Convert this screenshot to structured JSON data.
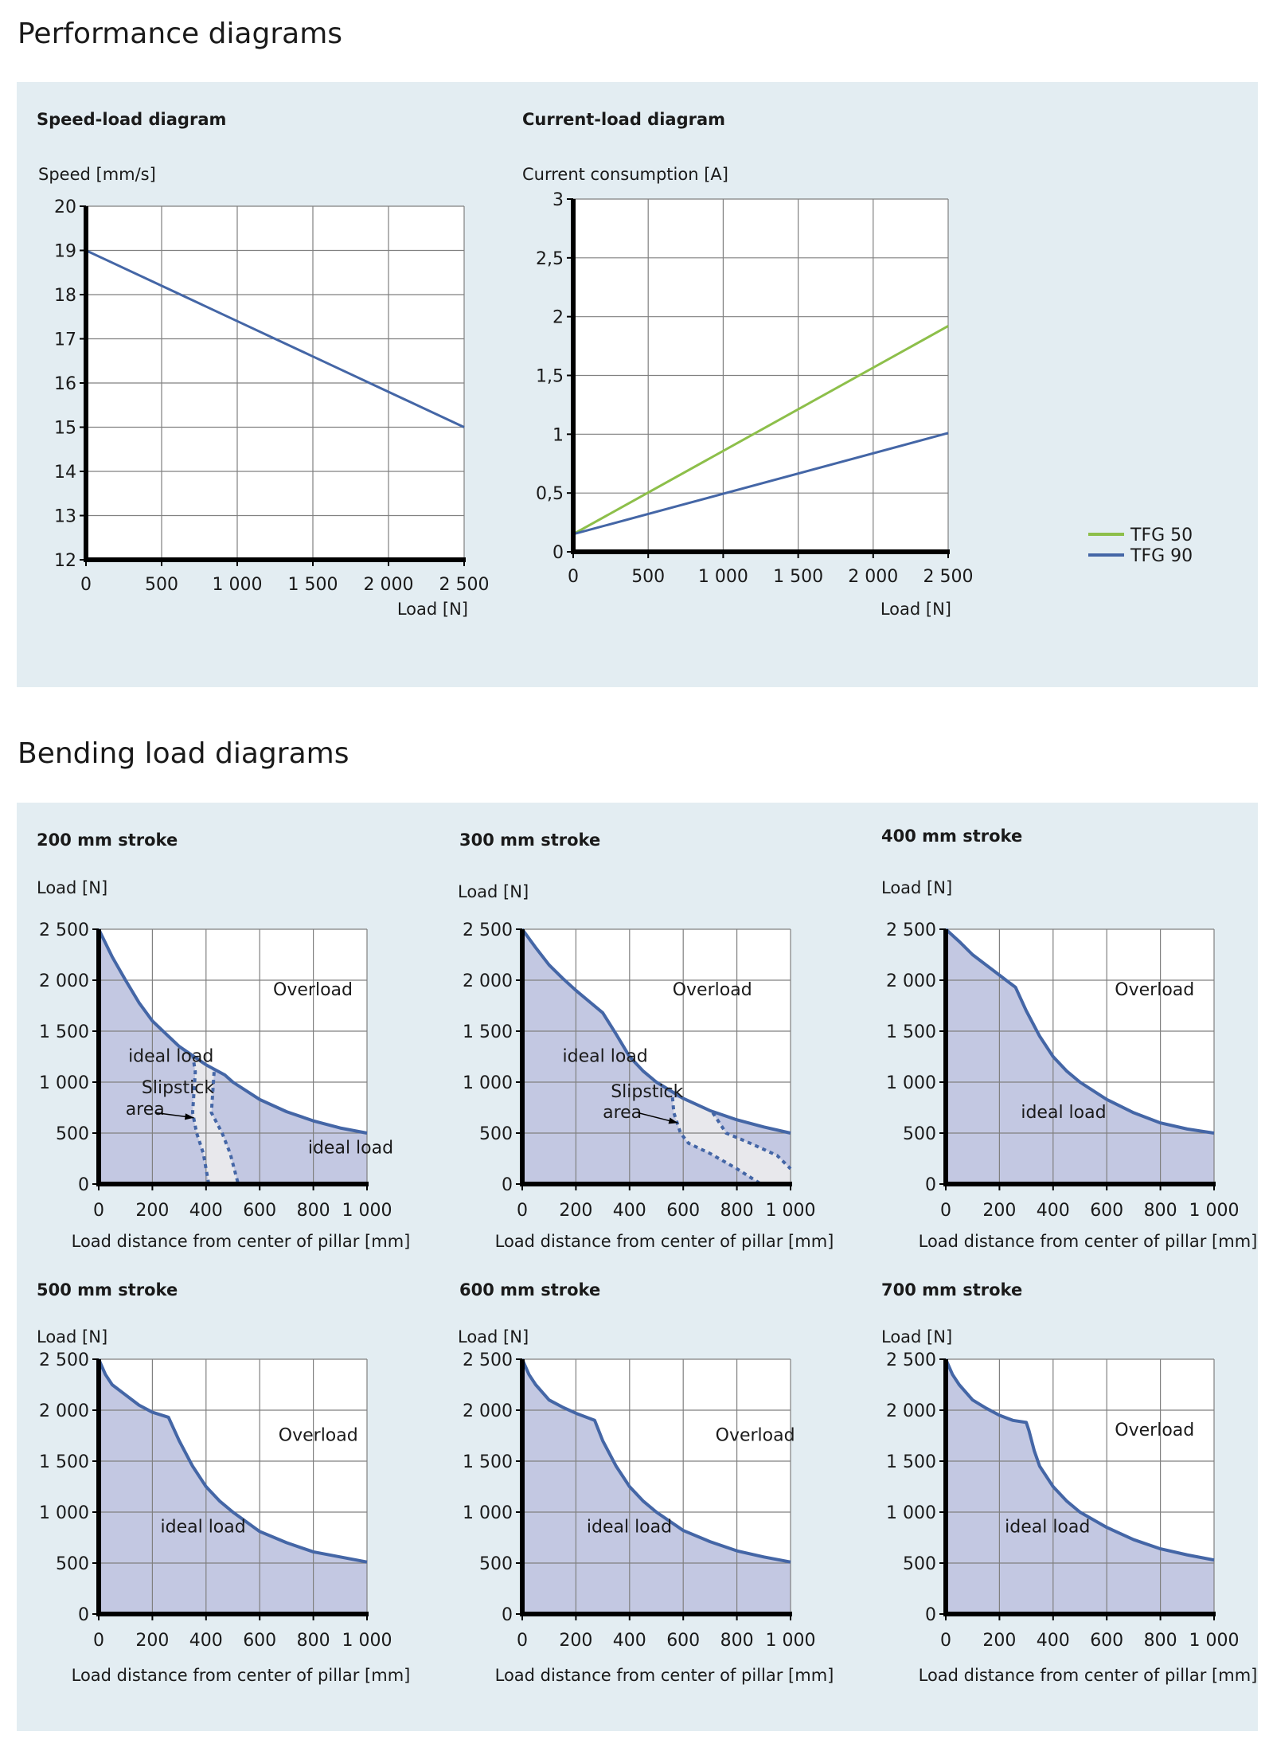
{
  "sections": {
    "performance_title": "Performance diagrams",
    "bending_title": "Bending load diagrams"
  },
  "colors": {
    "panel_bg": "#e3edf2",
    "tfg50": "#8dbf4a",
    "tfg90": "#4466a6",
    "ideal_fill": "#c3c8e2",
    "slipstick_fill": "#e8e8ec",
    "grid": "#808080"
  },
  "chart_data": [
    {
      "id": "speed",
      "type": "line",
      "title": "Speed-load diagram",
      "ylabel": "Speed [mm/s]",
      "xlabel": "Load [N]",
      "xlim": [
        0,
        2500
      ],
      "ylim": [
        12,
        20
      ],
      "xticks": [
        0,
        500,
        1000,
        1500,
        2000,
        2500
      ],
      "xtick_labels": [
        "0",
        "500",
        "1 000",
        "1 500",
        "2 000",
        "2 500"
      ],
      "yticks": [
        12,
        13,
        14,
        15,
        16,
        17,
        18,
        19,
        20
      ],
      "ytick_labels": [
        "12",
        "13",
        "14",
        "15",
        "16",
        "17",
        "18",
        "19",
        "20"
      ],
      "grid": true,
      "series": [
        {
          "name": "Speed",
          "color": "#4466a6",
          "x": [
            0,
            500,
            1000,
            1500,
            2000,
            2500
          ],
          "y": [
            19,
            18.2,
            17.4,
            16.6,
            15.8,
            15
          ]
        }
      ]
    },
    {
      "id": "current",
      "type": "line",
      "title": "Current-load diagram",
      "ylabel": "Current consumption [A]",
      "xlabel": "Load [N]",
      "xlim": [
        0,
        2500
      ],
      "ylim": [
        0,
        3
      ],
      "xticks": [
        0,
        500,
        1000,
        1500,
        2000,
        2500
      ],
      "xtick_labels": [
        "0",
        "500",
        "1 000",
        "1 500",
        "2 000",
        "2 500"
      ],
      "yticks": [
        0,
        0.5,
        1,
        1.5,
        2,
        2.5,
        3
      ],
      "ytick_labels": [
        "0",
        "0,5",
        "1",
        "1,5",
        "2",
        "2,5",
        "3"
      ],
      "grid": true,
      "legend_position": "right",
      "series": [
        {
          "name": "TFG 50",
          "color": "#8dbf4a",
          "x": [
            0,
            2500
          ],
          "y": [
            0.15,
            1.92
          ]
        },
        {
          "name": "TFG 90",
          "color": "#4466a6",
          "x": [
            0,
            2500
          ],
          "y": [
            0.15,
            1.01
          ]
        }
      ]
    },
    {
      "id": "b200",
      "type": "area",
      "title": "200 mm stroke",
      "ylabel": "Load [N]",
      "xlabel": "Load distance from center of pillar [mm]",
      "xlim": [
        0,
        1000
      ],
      "ylim": [
        0,
        2500
      ],
      "xticks": [
        0,
        200,
        400,
        600,
        800,
        1000
      ],
      "xtick_labels": [
        "0",
        "200",
        "400",
        "600",
        "800",
        "1 000"
      ],
      "yticks": [
        0,
        500,
        1000,
        1500,
        2000,
        2500
      ],
      "ytick_labels": [
        "0",
        "500",
        "1 000",
        "1 500",
        "2 000",
        "2 500"
      ],
      "grid": true,
      "limit_curve": {
        "x": [
          0,
          50,
          100,
          150,
          200,
          300,
          400,
          470,
          500,
          600,
          700,
          800,
          900,
          1000
        ],
        "y": [
          2500,
          2230,
          2000,
          1780,
          1600,
          1350,
          1170,
          1070,
          1000,
          830,
          710,
          620,
          550,
          500
        ]
      },
      "slipstick_left": {
        "x": [
          350,
          360,
          355,
          350,
          365,
          390,
          410
        ],
        "y": [
          1270,
          1100,
          900,
          700,
          500,
          300,
          0
        ]
      },
      "slipstick_right": {
        "x": [
          430,
          425,
          420,
          460,
          490,
          520
        ],
        "y": [
          1100,
          900,
          700,
          500,
          300,
          0
        ]
      },
      "annotations": [
        {
          "text": "Overload",
          "x": 650,
          "y": 1850
        },
        {
          "text": "ideal load",
          "x": 110,
          "y": 1200
        },
        {
          "text": "Slipstick",
          "x": 160,
          "y": 890
        },
        {
          "text": "area",
          "x": 100,
          "y": 680
        },
        {
          "text": "ideal load",
          "x": 780,
          "y": 300
        }
      ],
      "arrow": {
        "from": [
          210,
          700
        ],
        "to": [
          355,
          650
        ]
      }
    },
    {
      "id": "b300",
      "type": "area",
      "title": "300 mm stroke",
      "ylabel": "Load [N]",
      "xlabel": "Load distance from center of pillar [mm]",
      "xlim": [
        0,
        1000
      ],
      "ylim": [
        0,
        2500
      ],
      "xticks": [
        0,
        200,
        400,
        600,
        800,
        1000
      ],
      "xtick_labels": [
        "0",
        "200",
        "400",
        "600",
        "800",
        "1 000"
      ],
      "yticks": [
        0,
        500,
        1000,
        1500,
        2000,
        2500
      ],
      "ytick_labels": [
        "0",
        "500",
        "1 000",
        "1 500",
        "2 000",
        "2 500"
      ],
      "grid": true,
      "limit_curve": {
        "x": [
          0,
          50,
          100,
          150,
          200,
          250,
          300,
          350,
          400,
          450,
          500,
          600,
          700,
          800,
          900,
          1000
        ],
        "y": [
          2500,
          2320,
          2150,
          2020,
          1900,
          1790,
          1680,
          1470,
          1250,
          1110,
          1000,
          840,
          720,
          630,
          560,
          500
        ]
      },
      "slipstick_left": {
        "x": [
          560,
          565,
          590,
          620,
          700,
          800,
          890
        ],
        "y": [
          850,
          700,
          500,
          400,
          300,
          150,
          0
        ]
      },
      "slipstick_right": {
        "x": [
          710,
          760,
          850,
          950,
          1000
        ],
        "y": [
          700,
          500,
          400,
          280,
          150
        ]
      },
      "annotations": [
        {
          "text": "Overload",
          "x": 560,
          "y": 1850
        },
        {
          "text": "ideal load",
          "x": 150,
          "y": 1200
        },
        {
          "text": "Slipstick",
          "x": 330,
          "y": 850
        },
        {
          "text": "area",
          "x": 300,
          "y": 650
        }
      ],
      "arrow": {
        "from": [
          430,
          700
        ],
        "to": [
          580,
          600
        ]
      }
    },
    {
      "id": "b400",
      "type": "area",
      "title": "400 mm stroke",
      "ylabel": "Load [N]",
      "xlabel": "Load distance from center of pillar [mm]",
      "xlim": [
        0,
        1000
      ],
      "ylim": [
        0,
        2500
      ],
      "xticks": [
        0,
        200,
        400,
        600,
        800,
        1000
      ],
      "xtick_labels": [
        "0",
        "200",
        "400",
        "600",
        "800",
        "1 000"
      ],
      "yticks": [
        0,
        500,
        1000,
        1500,
        2000,
        2500
      ],
      "ytick_labels": [
        "0",
        "500",
        "1 000",
        "1 500",
        "2 000",
        "2 500"
      ],
      "grid": true,
      "limit_curve": {
        "x": [
          0,
          50,
          100,
          150,
          200,
          260,
          300,
          350,
          400,
          450,
          500,
          600,
          700,
          800,
          900,
          1000
        ],
        "y": [
          2500,
          2380,
          2250,
          2150,
          2050,
          1930,
          1700,
          1450,
          1250,
          1110,
          1000,
          830,
          700,
          600,
          540,
          500
        ]
      },
      "annotations": [
        {
          "text": "Overload",
          "x": 630,
          "y": 1850
        },
        {
          "text": "ideal load",
          "x": 280,
          "y": 650
        }
      ]
    },
    {
      "id": "b500",
      "type": "area",
      "title": "500 mm stroke",
      "ylabel": "Load [N]",
      "xlabel": "Load distance from center of pillar [mm]",
      "xlim": [
        0,
        1000
      ],
      "ylim": [
        0,
        2500
      ],
      "xticks": [
        0,
        200,
        400,
        600,
        800,
        1000
      ],
      "xtick_labels": [
        "0",
        "200",
        "400",
        "600",
        "800",
        "1 000"
      ],
      "yticks": [
        0,
        500,
        1000,
        1500,
        2000,
        2500
      ],
      "ytick_labels": [
        "0",
        "500",
        "1 000",
        "1 500",
        "2 000",
        "2 500"
      ],
      "grid": true,
      "limit_curve": {
        "x": [
          0,
          25,
          50,
          100,
          150,
          200,
          260,
          300,
          350,
          400,
          450,
          500,
          600,
          700,
          800,
          900,
          1000
        ],
        "y": [
          2500,
          2350,
          2250,
          2150,
          2050,
          1980,
          1930,
          1700,
          1450,
          1250,
          1110,
          1000,
          810,
          700,
          610,
          560,
          510
        ]
      },
      "annotations": [
        {
          "text": "Overload",
          "x": 670,
          "y": 1700
        },
        {
          "text": "ideal load",
          "x": 230,
          "y": 800
        }
      ]
    },
    {
      "id": "b600",
      "type": "area",
      "title": "600 mm stroke",
      "ylabel": "Load [N]",
      "xlabel": "Load distance from center of pillar [mm]",
      "xlim": [
        0,
        1000
      ],
      "ylim": [
        0,
        2500
      ],
      "xticks": [
        0,
        200,
        400,
        600,
        800,
        1000
      ],
      "xtick_labels": [
        "0",
        "200",
        "400",
        "600",
        "800",
        "1 000"
      ],
      "yticks": [
        0,
        500,
        1000,
        1500,
        2000,
        2500
      ],
      "ytick_labels": [
        "0",
        "500",
        "1 000",
        "1 500",
        "2 000",
        "2 500"
      ],
      "grid": true,
      "limit_curve": {
        "x": [
          0,
          25,
          50,
          100,
          150,
          200,
          270,
          300,
          350,
          400,
          450,
          500,
          600,
          700,
          800,
          900,
          1000
        ],
        "y": [
          2500,
          2350,
          2250,
          2100,
          2030,
          1970,
          1900,
          1700,
          1450,
          1250,
          1110,
          1000,
          820,
          710,
          620,
          560,
          510
        ]
      },
      "annotations": [
        {
          "text": "Overload",
          "x": 720,
          "y": 1700
        },
        {
          "text": "ideal load",
          "x": 240,
          "y": 800
        }
      ]
    },
    {
      "id": "b700",
      "type": "area",
      "title": "700 mm stroke",
      "ylabel": "Load [N]",
      "xlabel": "Load distance from center of pillar [mm]",
      "xlim": [
        0,
        1000
      ],
      "ylim": [
        0,
        2500
      ],
      "xticks": [
        0,
        200,
        400,
        600,
        800,
        1000
      ],
      "xtick_labels": [
        "0",
        "200",
        "400",
        "600",
        "800",
        "1 000"
      ],
      "yticks": [
        0,
        500,
        1000,
        1500,
        2000,
        2500
      ],
      "ytick_labels": [
        "0",
        "500",
        "1 000",
        "1 500",
        "2 000",
        "2 500"
      ],
      "grid": true,
      "limit_curve": {
        "x": [
          0,
          25,
          50,
          100,
          150,
          200,
          250,
          300,
          310,
          330,
          350,
          400,
          450,
          500,
          600,
          700,
          800,
          900,
          1000
        ],
        "y": [
          2500,
          2350,
          2250,
          2100,
          2020,
          1950,
          1900,
          1880,
          1800,
          1600,
          1450,
          1250,
          1110,
          1000,
          850,
          730,
          640,
          580,
          530
        ]
      },
      "annotations": [
        {
          "text": "Overload",
          "x": 630,
          "y": 1750
        },
        {
          "text": "ideal load",
          "x": 220,
          "y": 800
        }
      ]
    }
  ]
}
